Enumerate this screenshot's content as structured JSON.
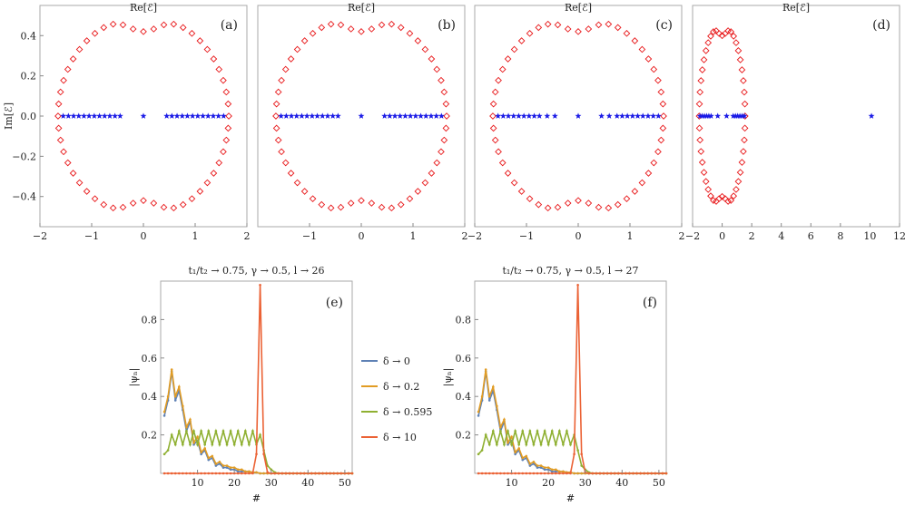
{
  "chart_data": [
    {
      "type": "scatter",
      "id": "a",
      "panel_label": "(a)",
      "title": "Re[ℰ]",
      "ylabel": "Im[ℰ]",
      "xlim": [
        -2,
        2
      ],
      "ylim": [
        -0.55,
        0.55
      ],
      "xticks": [
        "−2",
        "−1",
        "0",
        "1",
        "2"
      ],
      "yticks": [
        "0.4",
        "0.2",
        "0.0",
        "−0.2",
        "−0.4"
      ],
      "ring": {
        "name": "open boundary (complex)",
        "cx": 0,
        "rx": 1.65,
        "ry": 0.5,
        "dip": 0.08,
        "n": 52
      },
      "real_points": {
        "name": "real spectrum",
        "values": [
          -1.55,
          -1.45,
          -1.35,
          -1.25,
          -1.15,
          -1.05,
          -0.95,
          -0.85,
          -0.75,
          -0.65,
          -0.55,
          -0.45,
          0,
          0.45,
          0.55,
          0.65,
          0.75,
          0.85,
          0.95,
          1.05,
          1.15,
          1.25,
          1.35,
          1.45,
          1.55
        ]
      }
    },
    {
      "type": "scatter",
      "id": "b",
      "panel_label": "(b)",
      "title": "Re[ℰ]",
      "xlim": [
        -2,
        2
      ],
      "ylim": [
        -0.55,
        0.55
      ],
      "xticks": [
        "−1",
        "0",
        "1",
        "2"
      ],
      "ring": {
        "name": "open boundary (complex)",
        "cx": 0,
        "rx": 1.65,
        "ry": 0.5,
        "dip": 0.08,
        "n": 52
      },
      "real_points": {
        "name": "real spectrum",
        "values": [
          -1.55,
          -1.45,
          -1.35,
          -1.25,
          -1.15,
          -1.05,
          -0.95,
          -0.85,
          -0.75,
          -0.65,
          -0.55,
          -0.45,
          0,
          0.45,
          0.55,
          0.65,
          0.75,
          0.85,
          0.95,
          1.05,
          1.15,
          1.25,
          1.35,
          1.45,
          1.55
        ]
      }
    },
    {
      "type": "scatter",
      "id": "c",
      "panel_label": "(c)",
      "title": "Re[ℰ]",
      "xlim": [
        -2,
        2
      ],
      "ylim": [
        -0.55,
        0.55
      ],
      "xticks": [
        "−2",
        "−1",
        "0",
        "1",
        "2"
      ],
      "ring": {
        "name": "open boundary (complex)",
        "cx": 0,
        "rx": 1.65,
        "ry": 0.5,
        "dip": 0.08,
        "n": 52
      },
      "real_points": {
        "name": "real spectrum",
        "values": [
          -1.55,
          -1.45,
          -1.35,
          -1.25,
          -1.15,
          -1.05,
          -0.95,
          -0.85,
          -0.75,
          -0.6,
          -0.45,
          0,
          0.45,
          0.6,
          0.75,
          0.85,
          0.95,
          1.05,
          1.15,
          1.25,
          1.35,
          1.45,
          1.55
        ]
      }
    },
    {
      "type": "scatter",
      "id": "d",
      "panel_label": "(d)",
      "title": "Re[ℰ]",
      "xlim": [
        -2,
        12
      ],
      "ylim": [
        -0.55,
        0.55
      ],
      "xticks": [
        "−2",
        "0",
        "2",
        "4",
        "6",
        "8",
        "10",
        "12"
      ],
      "ring": {
        "name": "open boundary (complex)",
        "cx": 0,
        "rx": 1.55,
        "ry": 0.46,
        "dip": 0.06,
        "n": 48
      },
      "real_points": {
        "name": "real spectrum",
        "values": [
          -1.5,
          -1.35,
          -1.2,
          -1.05,
          -0.9,
          -0.75,
          -0.3,
          0.3,
          0.75,
          0.9,
          1.05,
          1.2,
          1.35,
          1.5,
          10.1
        ]
      }
    },
    {
      "type": "line",
      "id": "e",
      "panel_label": "(e)",
      "title": "t₁/t₂ → 0.75, γ → 0.5, l → 26",
      "xlabel": "#",
      "ylabel": "|ψₙ|",
      "xlim": [
        0,
        52
      ],
      "ylim": [
        0,
        1
      ],
      "xticks": [
        "10",
        "20",
        "30",
        "40",
        "50"
      ],
      "yticks": [
        "0.8",
        "0.6",
        "0.4",
        "0.2"
      ],
      "series": [
        {
          "name": "δ → 0",
          "color": "#5e81b5",
          "values": [
            0.3,
            0.38,
            0.53,
            0.38,
            0.43,
            0.33,
            0.22,
            0.27,
            0.15,
            0.17,
            0.1,
            0.12,
            0.07,
            0.08,
            0.04,
            0.05,
            0.03,
            0.03,
            0.02,
            0.02,
            0.01,
            0.01,
            0.01,
            0.01,
            0.005,
            0.005,
            0,
            0,
            0,
            0,
            0,
            0,
            0,
            0,
            0,
            0,
            0,
            0,
            0,
            0,
            0,
            0,
            0,
            0,
            0,
            0,
            0,
            0,
            0,
            0,
            0,
            0
          ]
        },
        {
          "name": "δ → 0.2",
          "color": "#e19c24",
          "values": [
            0.32,
            0.4,
            0.54,
            0.4,
            0.45,
            0.35,
            0.24,
            0.28,
            0.16,
            0.19,
            0.11,
            0.13,
            0.08,
            0.09,
            0.05,
            0.06,
            0.04,
            0.04,
            0.03,
            0.03,
            0.02,
            0.02,
            0.01,
            0.01,
            0.005,
            0.005,
            0,
            0,
            0,
            0,
            0,
            0,
            0,
            0,
            0,
            0,
            0,
            0,
            0,
            0,
            0,
            0,
            0,
            0,
            0,
            0,
            0,
            0,
            0,
            0,
            0,
            0
          ]
        },
        {
          "name": "δ → 0.595",
          "color": "#8fb032",
          "values": [
            0.1,
            0.12,
            0.2,
            0.15,
            0.22,
            0.15,
            0.22,
            0.15,
            0.22,
            0.15,
            0.22,
            0.15,
            0.22,
            0.15,
            0.22,
            0.15,
            0.22,
            0.15,
            0.22,
            0.15,
            0.22,
            0.15,
            0.22,
            0.15,
            0.22,
            0.15,
            0.2,
            0.12,
            0.04,
            0.02,
            0.005,
            0,
            0,
            0,
            0,
            0,
            0,
            0,
            0,
            0,
            0,
            0,
            0,
            0,
            0,
            0,
            0,
            0,
            0,
            0,
            0,
            0
          ]
        },
        {
          "name": "δ → 10",
          "color": "#eb6235",
          "values": [
            0,
            0,
            0,
            0,
            0,
            0,
            0,
            0,
            0,
            0,
            0,
            0,
            0,
            0,
            0,
            0,
            0,
            0,
            0,
            0,
            0,
            0,
            0,
            0,
            0,
            0.1,
            0.98,
            0.1,
            0.005,
            0,
            0,
            0,
            0,
            0,
            0,
            0,
            0,
            0,
            0,
            0,
            0,
            0,
            0,
            0,
            0,
            0,
            0,
            0,
            0,
            0,
            0,
            0
          ]
        }
      ]
    },
    {
      "type": "line",
      "id": "f",
      "panel_label": "(f)",
      "title": "t₁/t₂ → 0.75, γ → 0.5, l → 27",
      "xlabel": "#",
      "ylabel": "|ψₙ|",
      "xlim": [
        0,
        52
      ],
      "ylim": [
        0,
        1
      ],
      "xticks": [
        "10",
        "20",
        "30",
        "40",
        "50"
      ],
      "yticks": [
        "0.8",
        "0.6",
        "0.4",
        "0.2"
      ],
      "series": [
        {
          "name": "δ → 0",
          "color": "#5e81b5",
          "values": [
            0.3,
            0.38,
            0.53,
            0.38,
            0.43,
            0.33,
            0.22,
            0.27,
            0.15,
            0.17,
            0.1,
            0.12,
            0.07,
            0.08,
            0.04,
            0.05,
            0.03,
            0.03,
            0.02,
            0.02,
            0.01,
            0.01,
            0.01,
            0.01,
            0.005,
            0.005,
            0,
            0,
            0,
            0,
            0,
            0,
            0,
            0,
            0,
            0,
            0,
            0,
            0,
            0,
            0,
            0,
            0,
            0,
            0,
            0,
            0,
            0,
            0,
            0,
            0,
            0
          ]
        },
        {
          "name": "δ → 0.2",
          "color": "#e19c24",
          "values": [
            0.32,
            0.4,
            0.54,
            0.4,
            0.45,
            0.35,
            0.24,
            0.28,
            0.16,
            0.19,
            0.11,
            0.13,
            0.08,
            0.09,
            0.05,
            0.06,
            0.04,
            0.04,
            0.03,
            0.03,
            0.02,
            0.02,
            0.01,
            0.01,
            0.005,
            0.005,
            0,
            0,
            0,
            0,
            0,
            0,
            0,
            0,
            0,
            0,
            0,
            0,
            0,
            0,
            0,
            0,
            0,
            0,
            0,
            0,
            0,
            0,
            0,
            0,
            0,
            0
          ]
        },
        {
          "name": "δ → 0.595",
          "color": "#8fb032",
          "values": [
            0.1,
            0.12,
            0.2,
            0.15,
            0.22,
            0.15,
            0.22,
            0.15,
            0.22,
            0.15,
            0.22,
            0.15,
            0.22,
            0.15,
            0.22,
            0.15,
            0.22,
            0.15,
            0.22,
            0.15,
            0.22,
            0.15,
            0.22,
            0.15,
            0.22,
            0.15,
            0.2,
            0.12,
            0.04,
            0.02,
            0.005,
            0,
            0,
            0,
            0,
            0,
            0,
            0,
            0,
            0,
            0,
            0,
            0,
            0,
            0,
            0,
            0,
            0,
            0,
            0,
            0,
            0
          ]
        },
        {
          "name": "δ → 10",
          "color": "#eb6235",
          "values": [
            0,
            0,
            0,
            0,
            0,
            0,
            0,
            0,
            0,
            0,
            0,
            0,
            0,
            0,
            0,
            0,
            0,
            0,
            0,
            0,
            0,
            0,
            0,
            0,
            0,
            0,
            0.1,
            0.98,
            0.1,
            0.005,
            0,
            0,
            0,
            0,
            0,
            0,
            0,
            0,
            0,
            0,
            0,
            0,
            0,
            0,
            0,
            0,
            0,
            0,
            0,
            0,
            0,
            0
          ]
        }
      ]
    }
  ],
  "colors": {
    "ring": "#e8181a",
    "real": "#1a1ae6"
  }
}
